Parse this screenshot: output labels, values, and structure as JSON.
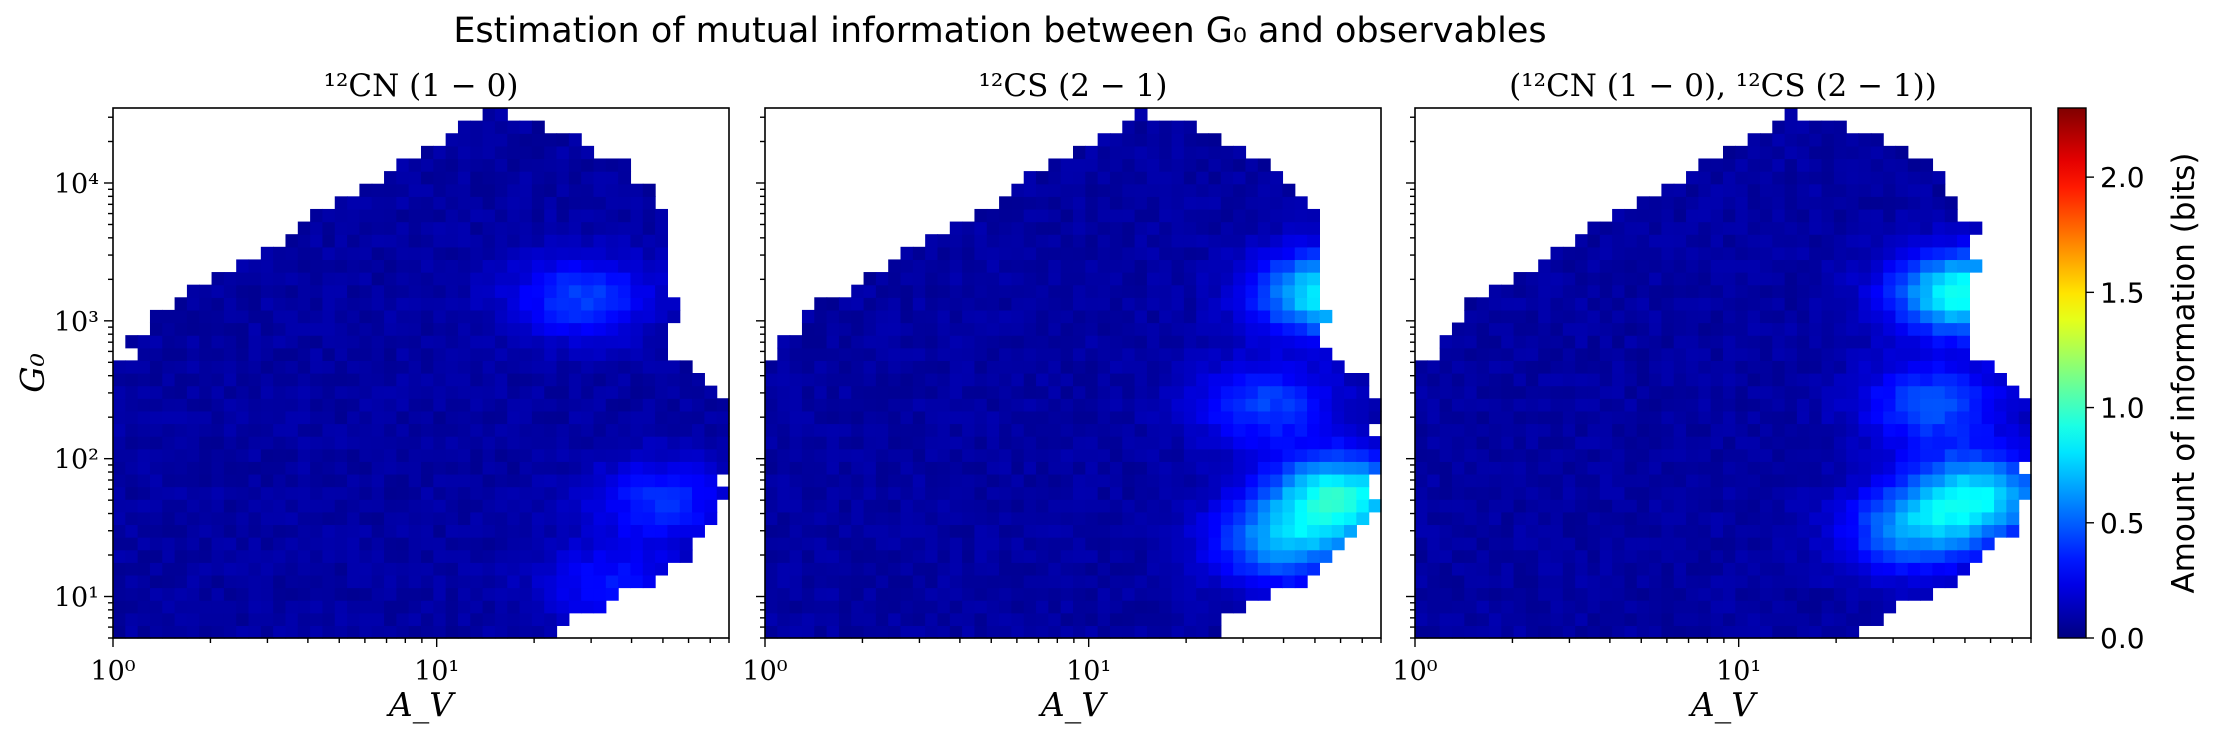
{
  "figure": {
    "title": "Estimation of mutual information between G₀ and observables"
  },
  "chart_data": [
    {
      "type": "heatmap",
      "title": "¹²CN (1 − 0)",
      "xlabel": "A_V",
      "ylabel": "G₀",
      "xscale": "log",
      "yscale": "log",
      "xlim": [
        1,
        80
      ],
      "ylim": [
        5,
        35000
      ],
      "x_ticks": [
        "10⁰",
        "10¹"
      ],
      "y_ticks": [
        "10¹",
        "10²",
        "10³",
        "10⁴"
      ],
      "hotspots": [
        {
          "x": 28,
          "y": 1500,
          "value": 0.35
        },
        {
          "x": 50,
          "y": 50,
          "value": 0.3
        },
        {
          "x": 35,
          "y": 12,
          "value": 0.25
        }
      ]
    },
    {
      "type": "heatmap",
      "title": "¹²CS (2 − 1)",
      "xlabel": "A_V",
      "xscale": "log",
      "yscale": "log",
      "xlim": [
        1,
        80
      ],
      "ylim": [
        5,
        35000
      ],
      "x_ticks": [
        "10⁰",
        "10¹"
      ],
      "hotspots": [
        {
          "x": 55,
          "y": 1600,
          "value": 0.8
        },
        {
          "x": 60,
          "y": 55,
          "value": 0.8
        },
        {
          "x": 40,
          "y": 25,
          "value": 0.55
        },
        {
          "x": 35,
          "y": 250,
          "value": 0.35
        }
      ]
    },
    {
      "type": "heatmap",
      "title": "(¹²CN (1 − 0), ¹²CS (2 − 1))",
      "xlabel": "A_V",
      "xscale": "log",
      "yscale": "log",
      "xlim": [
        1,
        80
      ],
      "ylim": [
        5,
        35000
      ],
      "x_ticks": [
        "10⁰",
        "10¹"
      ],
      "hotspots": [
        {
          "x": 50,
          "y": 1600,
          "value": 0.85
        },
        {
          "x": 55,
          "y": 55,
          "value": 0.7
        },
        {
          "x": 35,
          "y": 30,
          "value": 0.5
        },
        {
          "x": 40,
          "y": 250,
          "value": 0.4
        }
      ]
    }
  ],
  "colorbar": {
    "label": "Amount of information (bits)",
    "range": [
      0,
      2.3
    ],
    "ticks": [
      "0.0",
      "0.5",
      "1.0",
      "1.5",
      "2.0"
    ],
    "colormap": "jet"
  },
  "colors": {
    "background": "#ffffff",
    "axis": "#000000"
  }
}
